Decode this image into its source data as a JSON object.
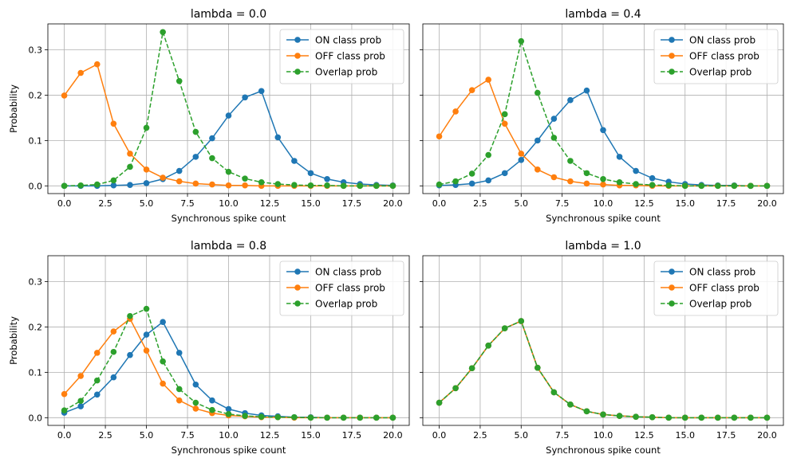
{
  "figure": {
    "ylabel": "Probability",
    "xlabel": "Synchronous spike count"
  },
  "chart_data": [
    {
      "type": "line",
      "title": "lambda = 0.0",
      "xlabel": "Synchronous spike count",
      "ylabel": "Probability",
      "xlim": [
        -1,
        21
      ],
      "ylim": [
        -0.017,
        0.357
      ],
      "xticks": [
        0.0,
        2.5,
        5.0,
        7.5,
        10.0,
        12.5,
        15.0,
        17.5,
        20.0
      ],
      "xtick_labels": [
        "0.0",
        "2.5",
        "5.0",
        "7.5",
        "10.0",
        "12.5",
        "15.0",
        "17.5",
        "20.0"
      ],
      "yticks": [
        0.0,
        0.1,
        0.2,
        0.3
      ],
      "ytick_labels": [
        "0.0",
        "0.1",
        "0.2",
        "0.3"
      ],
      "grid": true,
      "legend": "top-right",
      "x": [
        0,
        1,
        2,
        3,
        4,
        5,
        6,
        7,
        8,
        9,
        10,
        11,
        12,
        13,
        14,
        15,
        16,
        17,
        18,
        19,
        20
      ],
      "series": [
        {
          "name": "ON class prob",
          "color": "#1f77b4",
          "dashed": false,
          "values": [
            0.0,
            0.0,
            0.0,
            0.001,
            0.002,
            0.006,
            0.015,
            0.033,
            0.064,
            0.105,
            0.155,
            0.195,
            0.209,
            0.107,
            0.055,
            0.028,
            0.015,
            0.008,
            0.004,
            0.002,
            0.001
          ]
        },
        {
          "name": "OFF class prob",
          "color": "#ff7f0e",
          "dashed": false,
          "values": [
            0.199,
            0.249,
            0.268,
            0.137,
            0.071,
            0.036,
            0.018,
            0.01,
            0.005,
            0.003,
            0.001,
            0.001,
            0.0,
            0.0,
            0.0,
            0.0,
            0.0,
            0.0,
            0.0,
            0.0,
            0.0
          ]
        },
        {
          "name": "Overlap prob",
          "color": "#2ca02c",
          "dashed": true,
          "values": [
            0.0,
            0.001,
            0.003,
            0.012,
            0.042,
            0.128,
            0.339,
            0.231,
            0.119,
            0.061,
            0.031,
            0.016,
            0.008,
            0.004,
            0.002,
            0.001,
            0.001,
            0.0,
            0.0,
            0.0,
            0.0
          ]
        }
      ]
    },
    {
      "type": "line",
      "title": "lambda = 0.4",
      "xlabel": "Synchronous spike count",
      "ylabel": "",
      "xlim": [
        -1,
        21
      ],
      "ylim": [
        -0.017,
        0.357
      ],
      "xticks": [
        0.0,
        2.5,
        5.0,
        7.5,
        10.0,
        12.5,
        15.0,
        17.5,
        20.0
      ],
      "xtick_labels": [
        "0.0",
        "2.5",
        "5.0",
        "7.5",
        "10.0",
        "12.5",
        "15.0",
        "17.5",
        "20.0"
      ],
      "yticks": [
        0.0,
        0.1,
        0.2,
        0.3
      ],
      "ytick_labels": [],
      "grid": true,
      "legend": "top-right",
      "x": [
        0,
        1,
        2,
        3,
        4,
        5,
        6,
        7,
        8,
        9,
        10,
        11,
        12,
        13,
        14,
        15,
        16,
        17,
        18,
        19,
        20
      ],
      "series": [
        {
          "name": "ON class prob",
          "color": "#1f77b4",
          "dashed": false,
          "values": [
            0.001,
            0.002,
            0.005,
            0.012,
            0.028,
            0.057,
            0.1,
            0.148,
            0.189,
            0.21,
            0.123,
            0.064,
            0.033,
            0.017,
            0.009,
            0.004,
            0.002,
            0.001,
            0.001,
            0.0,
            0.0
          ]
        },
        {
          "name": "OFF class prob",
          "color": "#ff7f0e",
          "dashed": false,
          "values": [
            0.109,
            0.164,
            0.211,
            0.234,
            0.137,
            0.071,
            0.036,
            0.019,
            0.01,
            0.005,
            0.003,
            0.001,
            0.001,
            0.0,
            0.0,
            0.0,
            0.0,
            0.0,
            0.0,
            0.0,
            0.0
          ]
        },
        {
          "name": "Overlap prob",
          "color": "#2ca02c",
          "dashed": true,
          "values": [
            0.003,
            0.01,
            0.027,
            0.068,
            0.158,
            0.319,
            0.205,
            0.106,
            0.055,
            0.028,
            0.015,
            0.008,
            0.004,
            0.002,
            0.001,
            0.0,
            0.0,
            0.0,
            0.0,
            0.0,
            0.0
          ]
        }
      ]
    },
    {
      "type": "line",
      "title": "lambda = 0.8",
      "xlabel": "Synchronous spike count",
      "ylabel": "Probability",
      "xlim": [
        -1,
        21
      ],
      "ylim": [
        -0.017,
        0.357
      ],
      "xticks": [
        0.0,
        2.5,
        5.0,
        7.5,
        10.0,
        12.5,
        15.0,
        17.5,
        20.0
      ],
      "xtick_labels": [
        "0.0",
        "2.5",
        "5.0",
        "7.5",
        "10.0",
        "12.5",
        "15.0",
        "17.5",
        "20.0"
      ],
      "yticks": [
        0.0,
        0.1,
        0.2,
        0.3
      ],
      "ytick_labels": [
        "0.0",
        "0.1",
        "0.2",
        "0.3"
      ],
      "grid": true,
      "legend": "top-right",
      "x": [
        0,
        1,
        2,
        3,
        4,
        5,
        6,
        7,
        8,
        9,
        10,
        11,
        12,
        13,
        14,
        15,
        16,
        17,
        18,
        19,
        20
      ],
      "series": [
        {
          "name": "ON class prob",
          "color": "#1f77b4",
          "dashed": false,
          "values": [
            0.011,
            0.025,
            0.051,
            0.089,
            0.138,
            0.183,
            0.211,
            0.143,
            0.073,
            0.038,
            0.019,
            0.01,
            0.005,
            0.003,
            0.001,
            0.001,
            0.0,
            0.0,
            0.0,
            0.0,
            0.0
          ]
        },
        {
          "name": "OFF class prob",
          "color": "#ff7f0e",
          "dashed": false,
          "values": [
            0.052,
            0.092,
            0.143,
            0.19,
            0.218,
            0.148,
            0.075,
            0.038,
            0.02,
            0.01,
            0.005,
            0.003,
            0.001,
            0.001,
            0.0,
            0.0,
            0.0,
            0.0,
            0.0,
            0.0,
            0.0
          ]
        },
        {
          "name": "Overlap prob",
          "color": "#2ca02c",
          "dashed": true,
          "values": [
            0.016,
            0.037,
            0.082,
            0.145,
            0.224,
            0.24,
            0.124,
            0.063,
            0.033,
            0.017,
            0.008,
            0.004,
            0.002,
            0.001,
            0.001,
            0.0,
            0.0,
            0.0,
            0.0,
            0.0,
            0.0
          ]
        }
      ]
    },
    {
      "type": "line",
      "title": "lambda = 1.0",
      "xlabel": "Synchronous spike count",
      "ylabel": "",
      "xlim": [
        -1,
        21
      ],
      "ylim": [
        -0.017,
        0.357
      ],
      "xticks": [
        0.0,
        2.5,
        5.0,
        7.5,
        10.0,
        12.5,
        15.0,
        17.5,
        20.0
      ],
      "xtick_labels": [
        "0.0",
        "2.5",
        "5.0",
        "7.5",
        "10.0",
        "12.5",
        "15.0",
        "17.5",
        "20.0"
      ],
      "yticks": [
        0.0,
        0.1,
        0.2,
        0.3
      ],
      "ytick_labels": [],
      "grid": true,
      "legend": "top-right",
      "x": [
        0,
        1,
        2,
        3,
        4,
        5,
        6,
        7,
        8,
        9,
        10,
        11,
        12,
        13,
        14,
        15,
        16,
        17,
        18,
        19,
        20
      ],
      "series": [
        {
          "name": "ON class prob",
          "color": "#1f77b4",
          "dashed": false,
          "values": [
            0.033,
            0.065,
            0.109,
            0.159,
            0.197,
            0.213,
            0.11,
            0.056,
            0.029,
            0.014,
            0.007,
            0.004,
            0.002,
            0.001,
            0.0,
            0.0,
            0.0,
            0.0,
            0.0,
            0.0,
            0.0
          ]
        },
        {
          "name": "OFF class prob",
          "color": "#ff7f0e",
          "dashed": false,
          "values": [
            0.033,
            0.065,
            0.109,
            0.159,
            0.197,
            0.213,
            0.11,
            0.056,
            0.029,
            0.014,
            0.007,
            0.004,
            0.002,
            0.001,
            0.0,
            0.0,
            0.0,
            0.0,
            0.0,
            0.0,
            0.0
          ]
        },
        {
          "name": "Overlap prob",
          "color": "#2ca02c",
          "dashed": true,
          "values": [
            0.033,
            0.065,
            0.109,
            0.159,
            0.197,
            0.213,
            0.11,
            0.056,
            0.029,
            0.014,
            0.007,
            0.004,
            0.002,
            0.001,
            0.0,
            0.0,
            0.0,
            0.0,
            0.0,
            0.0,
            0.0
          ]
        }
      ]
    }
  ]
}
